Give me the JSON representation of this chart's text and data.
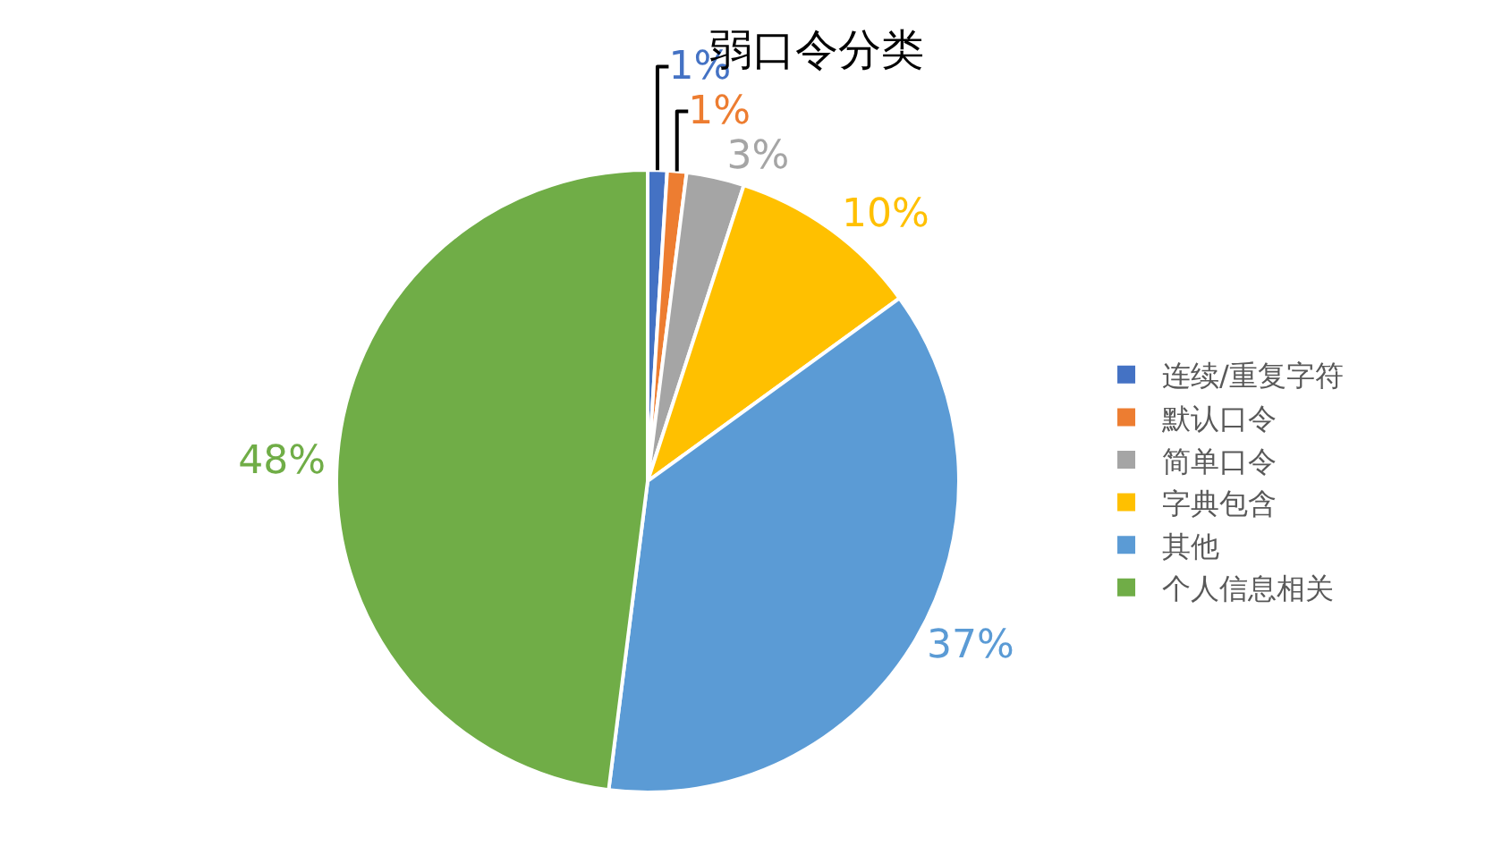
{
  "chart_data": {
    "type": "pie",
    "title": "弱口令分类",
    "categories": [
      "连续/重复字符",
      "默认口令",
      "简单口令",
      "字典包含",
      "其他",
      "个人信息相关"
    ],
    "values": [
      1,
      1,
      3,
      10,
      37,
      48
    ],
    "colors": [
      "#4472c4",
      "#ed7d31",
      "#a5a5a5",
      "#ffc000",
      "#5b9bd5",
      "#70ad47"
    ],
    "value_labels": [
      "1%",
      "1%",
      "3%",
      "10%",
      "37%",
      "48%"
    ],
    "legend": "right"
  }
}
